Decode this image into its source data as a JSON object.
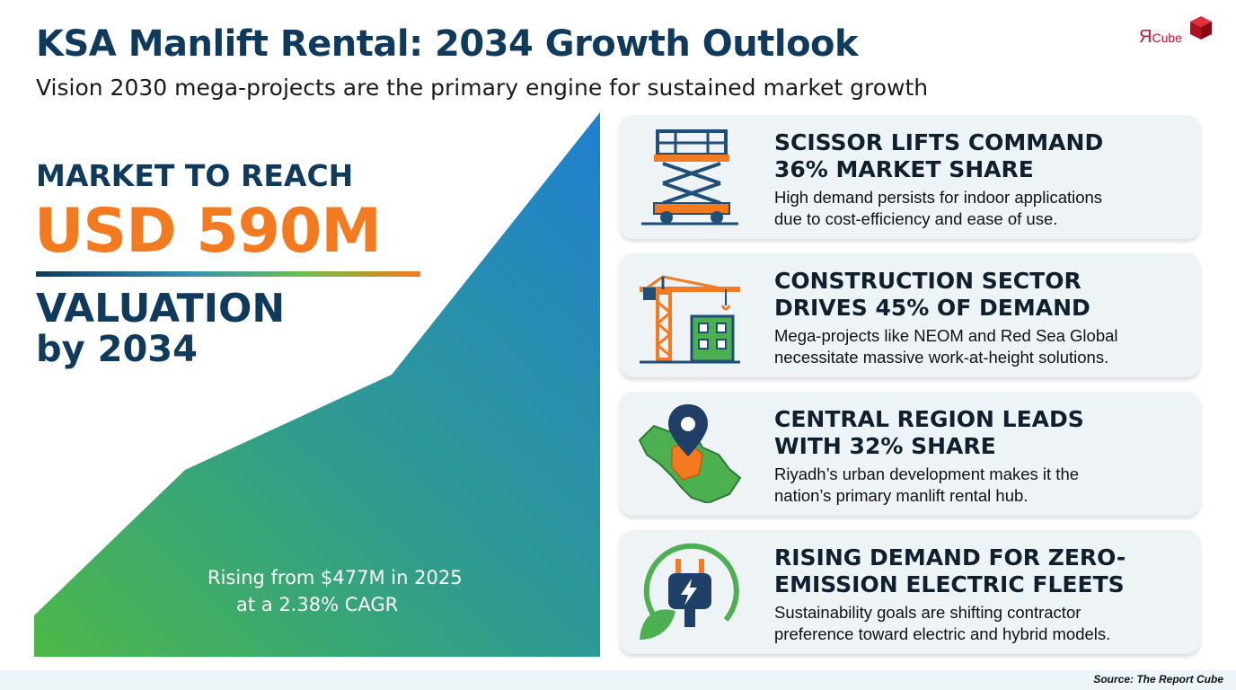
{
  "header": {
    "title": "KSA Manlift Rental: 2034 Growth Outlook",
    "subtitle": "Vision 2030 mega-projects are the primary engine for sustained market growth"
  },
  "logo": {
    "text_main": "Я",
    "text_small": "Cube"
  },
  "hero": {
    "line1": "MARKET TO REACH",
    "value": "USD 590M",
    "line3": "VALUATION",
    "line4": "by 2034",
    "rising_line1": "Rising from $477M in 2025",
    "rising_line2": "at a 2.38% CAGR"
  },
  "cards": [
    {
      "icon": "scissor-lift-icon",
      "title_line1": "SCISSOR LIFTS COMMAND",
      "title_line2": "36% MARKET SHARE",
      "body_line1": "High demand persists for indoor applications",
      "body_line2": "due to cost-efficiency and ease of use."
    },
    {
      "icon": "construction-crane-icon",
      "title_line1": "CONSTRUCTION SECTOR",
      "title_line2": "DRIVES 45% OF DEMAND",
      "body_line1": "Mega-projects like NEOM and Red Sea Global",
      "body_line2": "necessitate massive work-at-height solutions."
    },
    {
      "icon": "saudi-map-pin-icon",
      "title_line1": "CENTRAL REGION LEADS",
      "title_line2": "WITH 32% SHARE",
      "body_line1": "Riyadh’s urban development makes it the",
      "body_line2": "nation’s primary manlift rental hub."
    },
    {
      "icon": "electric-plug-leaf-icon",
      "title_line1": "RISING DEMAND FOR ZERO-",
      "title_line2": "EMISSION ELECTRIC FLEETS",
      "body_line1": "Sustainability goals are shifting contractor",
      "body_line2": "preference toward electric and hybrid models."
    }
  ],
  "footer": {
    "source": "Source: The Report Cube"
  },
  "colors": {
    "navy": "#0f3a5c",
    "orange": "#f47a20",
    "green": "#4caf50",
    "blue": "#2a86c8"
  }
}
